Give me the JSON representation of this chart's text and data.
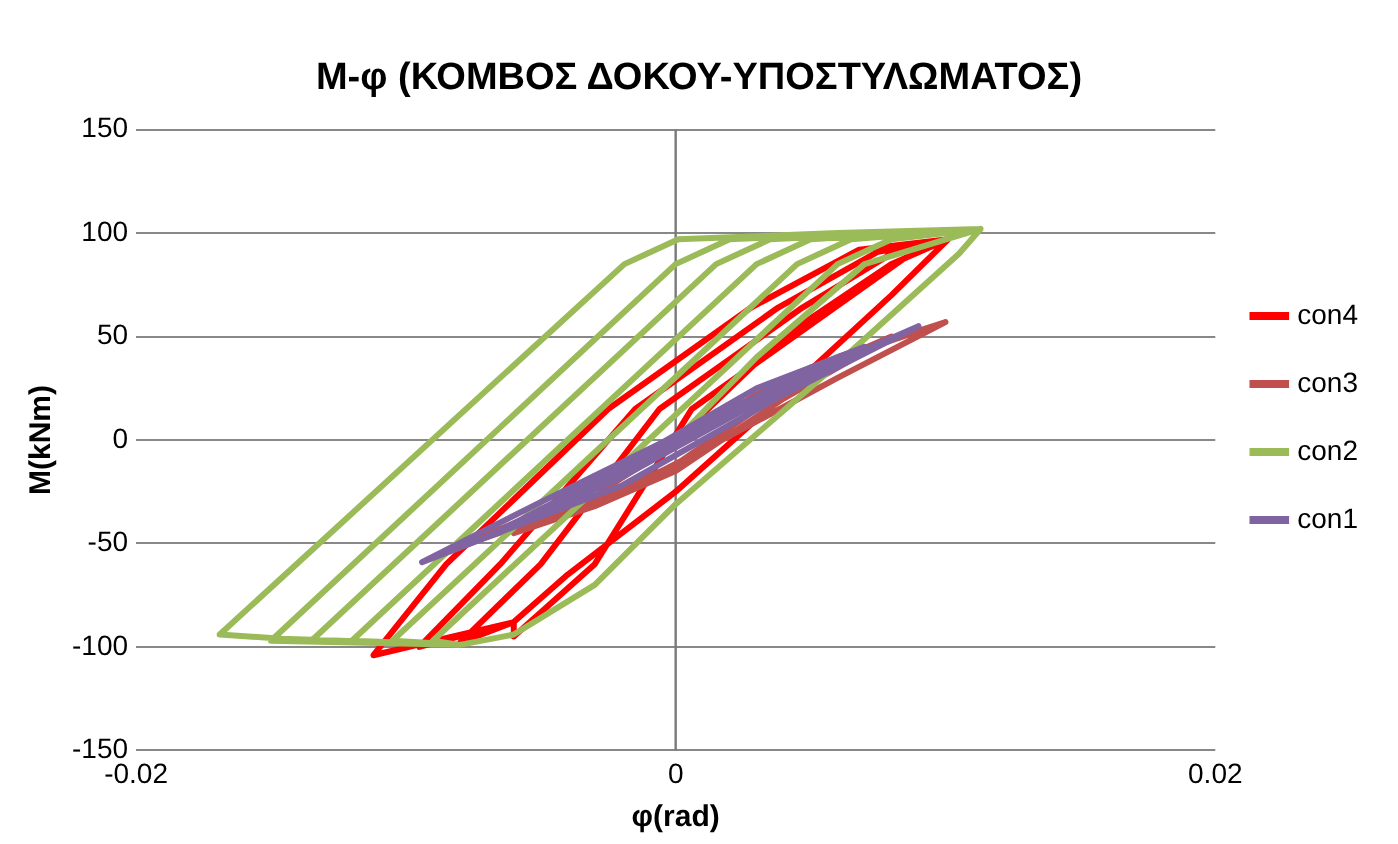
{
  "chart_data": {
    "type": "line",
    "title": "M-φ (ΚΟΜΒΟΣ ΔΟΚΟΥ-ΥΠΟΣΤΥΛΩΜΑΤΟΣ)",
    "xlabel": "φ(rad)",
    "ylabel": "M(kNm)",
    "xlim": [
      -0.02,
      0.02
    ],
    "xticks": [
      -0.02,
      0,
      0.02
    ],
    "ylim": [
      -150,
      150
    ],
    "yticks": [
      -150,
      -100,
      -50,
      0,
      50,
      100,
      150
    ],
    "grid": "y",
    "legend": "right",
    "marker": "none",
    "series": [
      {
        "name": "con4",
        "color": "#ff0000",
        "x": [
          0,
          0.004,
          0.008,
          0.0101,
          0.008,
          0.003,
          0,
          -0.004,
          -0.006,
          -0.006,
          -0.003,
          0.0006,
          0.0059,
          0.0085,
          0.0101,
          0.008,
          0.003,
          0,
          -0.004,
          -0.006,
          -0.008,
          -0.005,
          -0.0006,
          0.0047,
          0.008,
          0.0101,
          0.008,
          0.003,
          0,
          -0.004,
          -0.006,
          -0.0095,
          -0.0065,
          -0.0015,
          0.0038,
          0.0075,
          0.0101,
          0.008,
          0.003,
          0,
          -0.004,
          -0.006,
          -0.0112,
          -0.0085,
          -0.0025,
          0.0028,
          0.0068,
          0.0101
        ],
        "values": [
          0,
          50,
          85,
          97,
          70,
          10,
          -25,
          -65,
          -88,
          -95,
          -60,
          15,
          64,
          88,
          97,
          70,
          10,
          -25,
          -65,
          -88,
          -98,
          -60,
          15,
          64,
          90,
          97,
          70,
          10,
          -25,
          -65,
          -88,
          -100,
          -60,
          15,
          64,
          91,
          97,
          70,
          10,
          -25,
          -65,
          -88,
          -104,
          -60,
          15,
          64,
          92,
          97
        ]
      },
      {
        "name": "con3",
        "color": "#c0504d",
        "x": [
          0,
          0.006,
          0.003,
          0,
          -0.004,
          -0.001,
          0.003,
          0.008,
          0.004,
          0,
          -0.003,
          -0.006,
          -0.003,
          0.002,
          0.006,
          0.01,
          0.006,
          0.002,
          -0.002,
          -0.0084,
          -0.005,
          0,
          0.005,
          0.01
        ],
        "values": [
          0,
          40,
          15,
          -12,
          -35,
          -10,
          22,
          50,
          20,
          -15,
          -32,
          -45,
          -22,
          15,
          40,
          57,
          30,
          2,
          -25,
          -53,
          -35,
          0,
          35,
          57
        ]
      },
      {
        "name": "con2",
        "color": "#9bbb59",
        "x": [
          0,
          0.003,
          0.007,
          0.0113,
          0.0105,
          0.0054,
          0,
          -0.003,
          -0.006,
          -0.008,
          -0.009,
          0.006,
          0.008,
          0.0113,
          0.0105,
          0.0054,
          0,
          -0.003,
          -0.006,
          -0.008,
          -0.0105,
          0.0045,
          0.0065,
          0.0113,
          0.0105,
          0.0054,
          0,
          -0.003,
          -0.006,
          -0.008,
          -0.012,
          0.003,
          0.005,
          0.0113,
          0.0105,
          0.0054,
          0,
          -0.003,
          -0.006,
          -0.008,
          -0.0135,
          0.0015,
          0.0035,
          0.0113,
          0.0105,
          0.0054,
          0,
          -0.003,
          -0.006,
          -0.008,
          -0.015,
          0,
          0.002,
          0.0113,
          0.0105,
          0.0054,
          0,
          -0.003,
          -0.006,
          -0.008,
          -0.0146,
          -0.0169,
          -0.0019,
          0.0001,
          0.006,
          0.0113
        ],
        "values": [
          0,
          40,
          85,
          102,
          90,
          30,
          -31,
          -70,
          -94,
          -99,
          -97,
          85,
          97,
          102,
          90,
          30,
          -31,
          -70,
          -94,
          -99,
          -97,
          85,
          97,
          102,
          90,
          30,
          -31,
          -70,
          -94,
          -99,
          -97,
          85,
          97,
          102,
          90,
          30,
          -31,
          -70,
          -94,
          -99,
          -97,
          85,
          97,
          102,
          90,
          30,
          -31,
          -70,
          -94,
          -99,
          -97,
          85,
          97,
          102,
          90,
          30,
          -31,
          -70,
          -94,
          -99,
          -96,
          -94,
          85,
          97,
          100,
          102
        ]
      },
      {
        "name": "con1",
        "color": "#8064a2",
        "x": [
          0,
          0.005,
          0.002,
          -0.002,
          -0.005,
          -0.001,
          0.003,
          0.007,
          0.003,
          -0.002,
          -0.007,
          -0.003,
          0.002,
          0.009,
          0.004,
          -0.002,
          -0.0094,
          -0.005,
          0,
          0.005,
          0.009
        ],
        "values": [
          0,
          35,
          12,
          -15,
          -35,
          -5,
          25,
          45,
          18,
          -18,
          -47,
          -20,
          15,
          55,
          22,
          -22,
          -59,
          -30,
          2,
          32,
          55
        ]
      }
    ]
  }
}
